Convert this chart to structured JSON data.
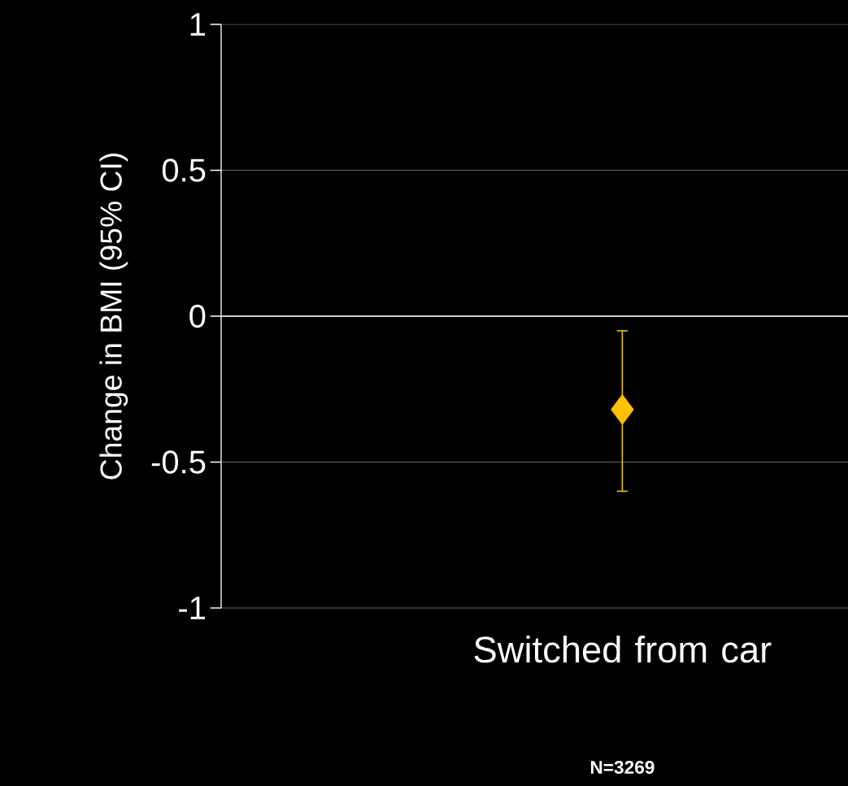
{
  "chart_data": {
    "type": "scatter",
    "ylabel": "Change  in BMI (95% CI)",
    "categories": [
      "Switched from car"
    ],
    "series": [
      {
        "color": "#ffc000",
        "values": [
          -0.32
        ],
        "errors": [
          [
            -0.6,
            -0.05
          ]
        ]
      }
    ],
    "ylim": [
      -1,
      1
    ],
    "yticks": [
      -1,
      -0.5,
      0,
      0.5,
      1
    ],
    "grid": "y",
    "marker": "diamond",
    "ref_lines": [
      {
        "axis": "y",
        "value": 0,
        "color": "#ffffff"
      }
    ],
    "annotations": [
      "N=3269"
    ]
  }
}
